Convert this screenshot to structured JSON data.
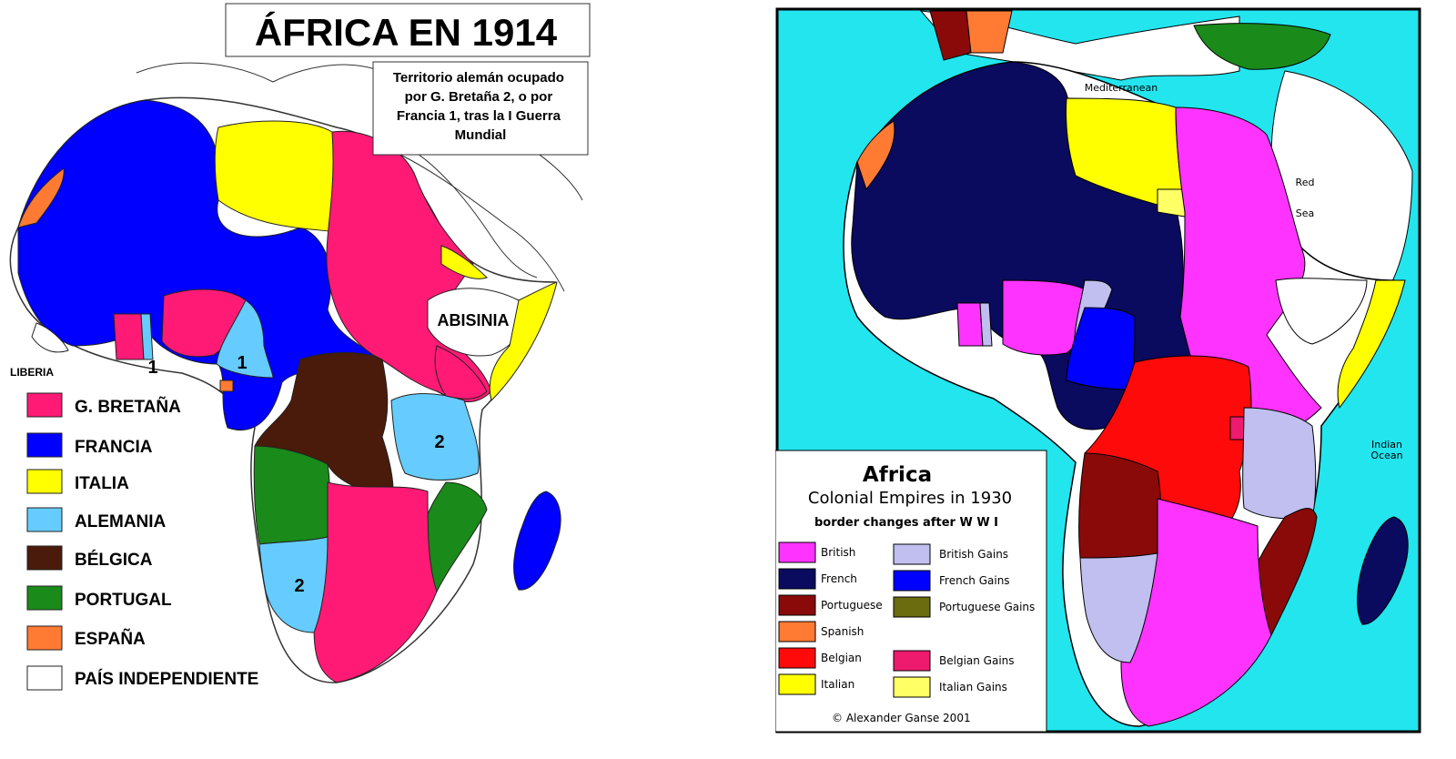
{
  "map1914": {
    "title": "ÁFRICA EN 1914",
    "note": "Territorio alemán ocupado por G. Bretaña 2, o por Francia 1, tras la I Guerra Mundial",
    "note_lines": [
      "Territorio alemán ocupado",
      "por G. Bretaña 2, o por",
      "Francia 1, tras la I Guerra",
      "Mundial"
    ],
    "labels": {
      "abisinia": "ABISINIA",
      "liberia": "LIBERIA",
      "one_a": "1",
      "one_b": "1",
      "two_a": "2",
      "two_b": "2"
    },
    "legend": [
      {
        "label": "G. BRETAÑA",
        "color": "#ff1a75"
      },
      {
        "label": "FRANCIA",
        "color": "#0000ff"
      },
      {
        "label": "ITALIA",
        "color": "#ffff00"
      },
      {
        "label": "ALEMANIA",
        "color": "#66ccff"
      },
      {
        "label": "BÉLGICA",
        "color": "#4a1a0a"
      },
      {
        "label": "PORTUGAL",
        "color": "#1a8a1a"
      },
      {
        "label": "ESPAÑA",
        "color": "#ff7a33"
      },
      {
        "label": "PAÍS INDEPENDIENTE",
        "color": "#ffffff"
      }
    ]
  },
  "map1930": {
    "title": "Africa",
    "subtitle": "Colonial Empires  in 1930",
    "subtitle2": "border changes  after W W I",
    "credit": "© Alexander  Ganse  2001",
    "seas": {
      "mediterranean": "Mediterranean",
      "red": "Red",
      "sea": "Sea",
      "indian": "Indian",
      "ocean": "Ocean"
    },
    "legend": [
      {
        "label": "British",
        "color": "#ff33ff"
      },
      {
        "label": "British Gains",
        "color": "#c0bff0"
      },
      {
        "label": "French",
        "color": "#0a0a5e"
      },
      {
        "label": "French Gains",
        "color": "#0000ff"
      },
      {
        "label": "Portuguese",
        "color": "#8a0a0a"
      },
      {
        "label": "Portuguese Gains",
        "color": "#6b6b10"
      },
      {
        "label": "Spanish",
        "color": "#ff7a33"
      },
      {
        "label": "Belgian",
        "color": "#ff0a0a"
      },
      {
        "label": "Belgian Gains",
        "color": "#ee1a6e"
      },
      {
        "label": "Italian",
        "color": "#ffff00"
      },
      {
        "label": "Italian Gains",
        "color": "#ffff66"
      }
    ]
  }
}
